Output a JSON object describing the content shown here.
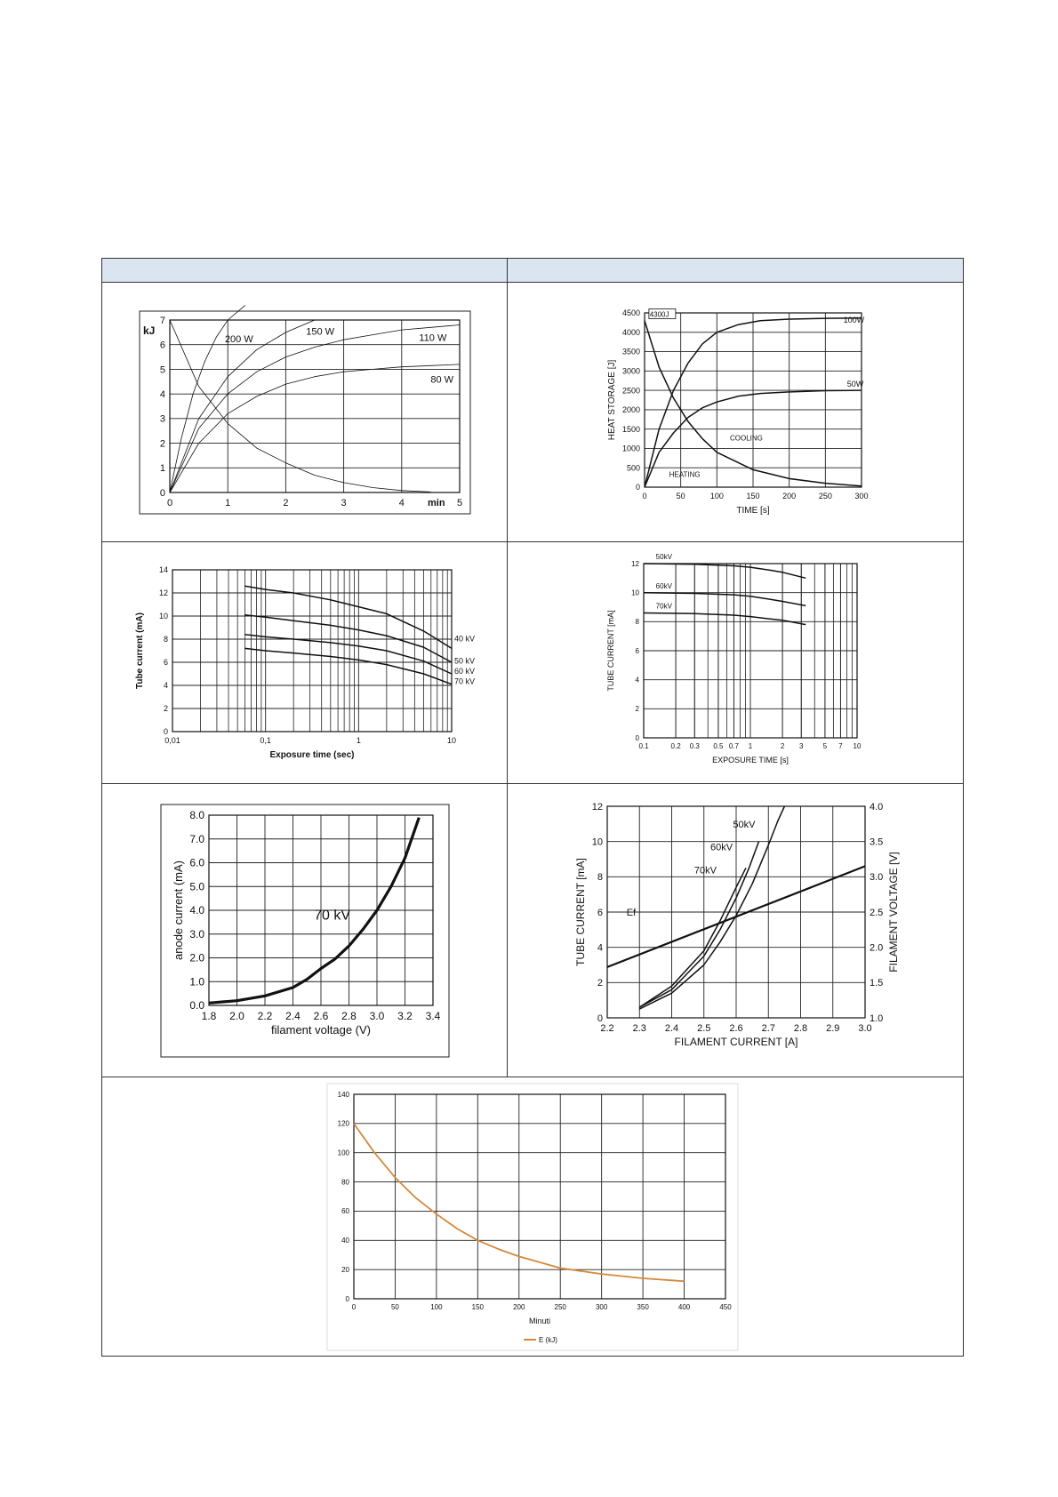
{
  "table": {
    "header_left": "",
    "header_right": ""
  },
  "chart_data": [
    {
      "id": "c1",
      "type": "line",
      "ylabel": "kJ",
      "xunit": "min",
      "xlim": [
        0,
        5
      ],
      "ylim": [
        0,
        7
      ],
      "xticks": [
        "0",
        "1",
        "2",
        "3",
        "4",
        "5"
      ],
      "yticks": [
        "0",
        "1",
        "2",
        "3",
        "4",
        "5",
        "6",
        "7"
      ],
      "series": [
        {
          "name": "200 W",
          "x": [
            0,
            0.2,
            0.4,
            0.6,
            0.8,
            1.0,
            1.3
          ],
          "y": [
            0,
            2.2,
            4.0,
            5.3,
            6.3,
            7.0,
            7.6
          ]
        },
        {
          "name": "150 W",
          "x": [
            0,
            0.5,
            1,
            1.5,
            2,
            2.5
          ],
          "y": [
            0,
            3.0,
            4.7,
            5.8,
            6.5,
            7.0
          ]
        },
        {
          "name": "110 W",
          "x": [
            0,
            0.5,
            1,
            1.5,
            2,
            2.5,
            3,
            3.5,
            4,
            4.5,
            5
          ],
          "y": [
            0,
            2.6,
            4.0,
            4.9,
            5.5,
            5.9,
            6.2,
            6.4,
            6.6,
            6.7,
            6.8
          ]
        },
        {
          "name": "80 W",
          "x": [
            0,
            0.5,
            1,
            1.5,
            2,
            2.5,
            3,
            3.5,
            4,
            4.5,
            5
          ],
          "y": [
            0,
            2.0,
            3.2,
            3.9,
            4.4,
            4.7,
            4.9,
            5.0,
            5.1,
            5.15,
            5.2
          ]
        },
        {
          "name": "",
          "x": [
            0,
            0.5,
            1,
            1.5,
            2,
            2.5,
            3,
            3.5,
            4,
            4.5
          ],
          "y": [
            7.0,
            4.3,
            2.8,
            1.8,
            1.2,
            0.7,
            0.4,
            0.2,
            0.08,
            0.02
          ]
        }
      ]
    },
    {
      "id": "c2",
      "type": "line",
      "xlabel": "TIME  [s]",
      "ylabel": "HEAT STORAGE  [J]",
      "xlim": [
        0,
        300
      ],
      "ylim": [
        0,
        4500
      ],
      "xticks": [
        "0",
        "50",
        "100",
        "150",
        "200",
        "250",
        "300"
      ],
      "yticks": [
        "0",
        "500",
        "1000",
        "1500",
        "2000",
        "2500",
        "3000",
        "3500",
        "4000",
        "4500"
      ],
      "annotations": [
        "4300J",
        "COOLING",
        "HEATING"
      ],
      "series": [
        {
          "name": "100W",
          "x": [
            0,
            20,
            40,
            60,
            80,
            100,
            130,
            160,
            200,
            250,
            300
          ],
          "y": [
            0,
            1500,
            2500,
            3200,
            3700,
            4000,
            4200,
            4300,
            4340,
            4360,
            4370
          ]
        },
        {
          "name": "50W",
          "x": [
            0,
            20,
            40,
            60,
            80,
            100,
            130,
            160,
            200,
            250,
            300
          ],
          "y": [
            0,
            900,
            1400,
            1800,
            2050,
            2200,
            2350,
            2420,
            2460,
            2490,
            2500
          ]
        },
        {
          "name": "",
          "x": [
            0,
            20,
            40,
            60,
            80,
            100,
            150,
            200,
            250,
            300
          ],
          "y": [
            4300,
            3100,
            2300,
            1700,
            1250,
            900,
            450,
            220,
            100,
            30
          ]
        }
      ]
    },
    {
      "id": "c3",
      "type": "line",
      "xscale": "log",
      "xlabel": "Exposure time (sec)",
      "ylabel": "Tube current (mA)",
      "xlim": [
        0.01,
        10
      ],
      "ylim": [
        0,
        14
      ],
      "xticks": [
        "0,01",
        "0,1",
        "1",
        "10"
      ],
      "yticks": [
        "0",
        "2",
        "4",
        "6",
        "8",
        "10",
        "12",
        "14"
      ],
      "series": [
        {
          "name": "40 kV",
          "x": [
            0.06,
            0.1,
            0.2,
            0.5,
            1,
            2,
            5,
            10
          ],
          "y": [
            12.6,
            12.3,
            12.0,
            11.4,
            10.8,
            10.2,
            8.7,
            7.2
          ]
        },
        {
          "name": "50 kV",
          "x": [
            0.06,
            0.1,
            0.2,
            0.5,
            1,
            2,
            5,
            10
          ],
          "y": [
            10.1,
            9.9,
            9.6,
            9.2,
            8.8,
            8.3,
            7.3,
            6.0
          ]
        },
        {
          "name": "60 kV",
          "x": [
            0.06,
            0.1,
            0.2,
            0.5,
            1,
            2,
            5,
            10
          ],
          "y": [
            8.4,
            8.2,
            8.0,
            7.7,
            7.4,
            7.0,
            6.1,
            5.0
          ]
        },
        {
          "name": "70 kV",
          "x": [
            0.06,
            0.1,
            0.2,
            0.5,
            1,
            2,
            5,
            10
          ],
          "y": [
            7.2,
            7.0,
            6.8,
            6.5,
            6.2,
            5.8,
            5.0,
            4.1
          ]
        }
      ]
    },
    {
      "id": "c4",
      "type": "line",
      "xscale": "log",
      "xlabel": "EXPOSURE TIME  [s]",
      "ylabel": "TUBE CURRENT  [mA]",
      "xlim": [
        0.1,
        10
      ],
      "ylim": [
        0,
        12
      ],
      "xticks": [
        "0.1",
        "0.2",
        "0.3",
        "0.5",
        "0.7",
        "1",
        "2",
        "3",
        "5",
        "7",
        "10"
      ],
      "yticks": [
        "0",
        "2",
        "4",
        "6",
        "8",
        "10",
        "12"
      ],
      "series": [
        {
          "name": "50kV",
          "x": [
            0.1,
            0.3,
            0.7,
            1,
            1.5,
            2,
            3.3
          ],
          "y": [
            12.0,
            11.95,
            11.85,
            11.75,
            11.55,
            11.4,
            11.0
          ]
        },
        {
          "name": "60kV",
          "x": [
            0.1,
            0.3,
            0.7,
            1,
            1.5,
            2,
            3.3
          ],
          "y": [
            10.0,
            9.95,
            9.85,
            9.75,
            9.55,
            9.4,
            9.1
          ]
        },
        {
          "name": "70kV",
          "x": [
            0.1,
            0.3,
            0.7,
            1,
            1.5,
            2,
            3.3
          ],
          "y": [
            8.6,
            8.55,
            8.45,
            8.35,
            8.2,
            8.1,
            7.8
          ]
        }
      ]
    },
    {
      "id": "c5",
      "type": "line",
      "xlabel": "filament voltage (V)",
      "ylabel": "anode current (mA)",
      "xlim": [
        1.8,
        3.4
      ],
      "ylim": [
        0,
        8
      ],
      "xticks": [
        "1.8",
        "2.0",
        "2.2",
        "2.4",
        "2.6",
        "2.8",
        "3.0",
        "3.2",
        "3.4"
      ],
      "yticks": [
        "0.0",
        "1.0",
        "2.0",
        "3.0",
        "4.0",
        "5.0",
        "6.0",
        "7.0",
        "8.0"
      ],
      "annotation": "70 kV",
      "series": [
        {
          "name": "",
          "x": [
            1.8,
            2.0,
            2.2,
            2.4,
            2.5,
            2.6,
            2.7,
            2.8,
            2.9,
            3.0,
            3.1,
            3.2,
            3.3
          ],
          "y": [
            0.1,
            0.2,
            0.4,
            0.75,
            1.1,
            1.55,
            1.95,
            2.5,
            3.2,
            4.0,
            5.0,
            6.2,
            7.9
          ]
        }
      ]
    },
    {
      "id": "c6",
      "type": "line",
      "xlabel": "FILAMENT CURRENT  [A]",
      "ylabel": "TUBE CURRENT  [mA]",
      "y2label": "FILAMENT VOLTAGE  [V]",
      "xlim": [
        2.2,
        3.0
      ],
      "ylim": [
        0,
        12
      ],
      "y2lim": [
        1.0,
        4.0
      ],
      "xticks": [
        "2.2",
        "2.3",
        "2.4",
        "2.5",
        "2.6",
        "2.7",
        "2.8",
        "2.9",
        "3.0"
      ],
      "yticks": [
        "0",
        "2",
        "4",
        "6",
        "8",
        "10",
        "12"
      ],
      "y2ticks": [
        "1.0",
        "1.5",
        "2.0",
        "2.5",
        "3.0",
        "3.5",
        "4.0"
      ],
      "series": [
        {
          "name": "Ef",
          "axis": "y2",
          "x": [
            2.2,
            3.0
          ],
          "y": [
            1.72,
            3.15
          ]
        },
        {
          "name": "50kV",
          "x": [
            2.3,
            2.4,
            2.5,
            2.55,
            2.6,
            2.65,
            2.7,
            2.73,
            2.75
          ],
          "y": [
            0.5,
            1.4,
            3.0,
            4.3,
            5.8,
            7.6,
            9.8,
            11.2,
            12.0
          ]
        },
        {
          "name": "60kV",
          "x": [
            2.3,
            2.4,
            2.5,
            2.55,
            2.6,
            2.64,
            2.67
          ],
          "y": [
            0.6,
            1.6,
            3.5,
            5.0,
            6.8,
            8.5,
            10.0
          ]
        },
        {
          "name": "70kV",
          "x": [
            2.3,
            2.4,
            2.5,
            2.55,
            2.6,
            2.63
          ],
          "y": [
            0.6,
            1.8,
            3.8,
            5.5,
            7.4,
            8.5
          ]
        }
      ]
    },
    {
      "id": "c7",
      "type": "line",
      "xlabel": "Minuti",
      "xlim": [
        0,
        450
      ],
      "ylim": [
        0,
        140
      ],
      "xticks": [
        "0",
        "50",
        "100",
        "150",
        "200",
        "250",
        "300",
        "350",
        "400",
        "450"
      ],
      "yticks": [
        "0",
        "20",
        "40",
        "60",
        "80",
        "100",
        "120",
        "140"
      ],
      "legend": "E (kJ)",
      "color": "#d4893a",
      "series": [
        {
          "name": "E (kJ)",
          "x": [
            0,
            25,
            50,
            75,
            100,
            125,
            150,
            175,
            200,
            250,
            300,
            350,
            400
          ],
          "y": [
            120,
            100,
            83,
            69,
            58,
            48,
            40,
            34,
            29,
            21,
            17,
            14,
            12
          ]
        }
      ]
    }
  ]
}
